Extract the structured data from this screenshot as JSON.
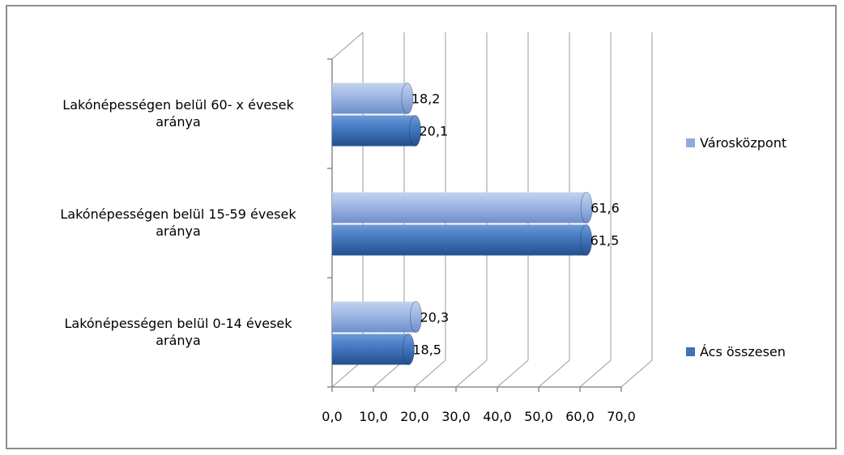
{
  "chart_data": {
    "type": "bar",
    "orientation": "horizontal",
    "style": "3d-cylinder",
    "categories": [
      [
        "Lakónépességen belül 60- x évesek",
        "aránya"
      ],
      [
        "Lakónépességen belül 15-59 évesek",
        "aránya"
      ],
      [
        "Lakónépességen belül 0-14 évesek",
        "aránya"
      ]
    ],
    "series": [
      {
        "name": "Városközpont",
        "color": "#8faadc",
        "values": [
          18.2,
          61.6,
          20.3
        ],
        "labels": [
          "18,2",
          "61,6",
          "20,3"
        ]
      },
      {
        "name": "Ács összesen",
        "color": "#3f72b6",
        "values": [
          20.1,
          61.5,
          18.5
        ],
        "labels": [
          "20,1",
          "61,5",
          "18,5"
        ]
      }
    ],
    "xlim": [
      0,
      70
    ],
    "xticks": [
      "0,0",
      "10,0",
      "20,0",
      "30,0",
      "40,0",
      "50,0",
      "60,0",
      "70,0"
    ],
    "grid": true,
    "legend": "right"
  }
}
